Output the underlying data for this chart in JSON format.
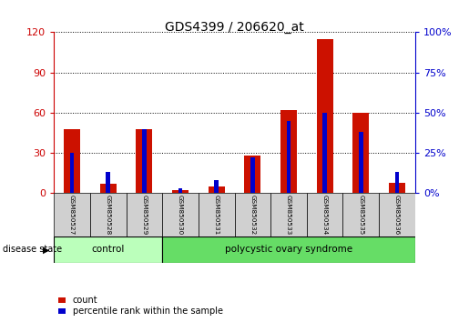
{
  "title": "GDS4399 / 206620_at",
  "samples": [
    "GSM850527",
    "GSM850528",
    "GSM850529",
    "GSM850530",
    "GSM850531",
    "GSM850532",
    "GSM850533",
    "GSM850534",
    "GSM850535",
    "GSM850536"
  ],
  "count_values": [
    48,
    7,
    48,
    2,
    5,
    28,
    62,
    115,
    60,
    8
  ],
  "percentile_values": [
    25,
    13,
    40,
    3,
    8,
    22,
    45,
    50,
    38,
    13
  ],
  "ylim_left": [
    0,
    120
  ],
  "ylim_right": [
    0,
    100
  ],
  "yticks_left": [
    0,
    30,
    60,
    90,
    120
  ],
  "yticks_right": [
    0,
    25,
    50,
    75,
    100
  ],
  "left_tick_color": "#cc0000",
  "right_tick_color": "#0000cc",
  "bar_color_red": "#cc1100",
  "bar_color_blue": "#0000cc",
  "control_label": "control",
  "pcos_label": "polycystic ovary syndrome",
  "control_color": "#bbffbb",
  "pcos_color": "#66dd66",
  "disease_state_label": "disease state",
  "legend_count": "count",
  "legend_percentile": "percentile rank within the sample",
  "figsize": [
    5.15,
    3.54
  ],
  "dpi": 100
}
